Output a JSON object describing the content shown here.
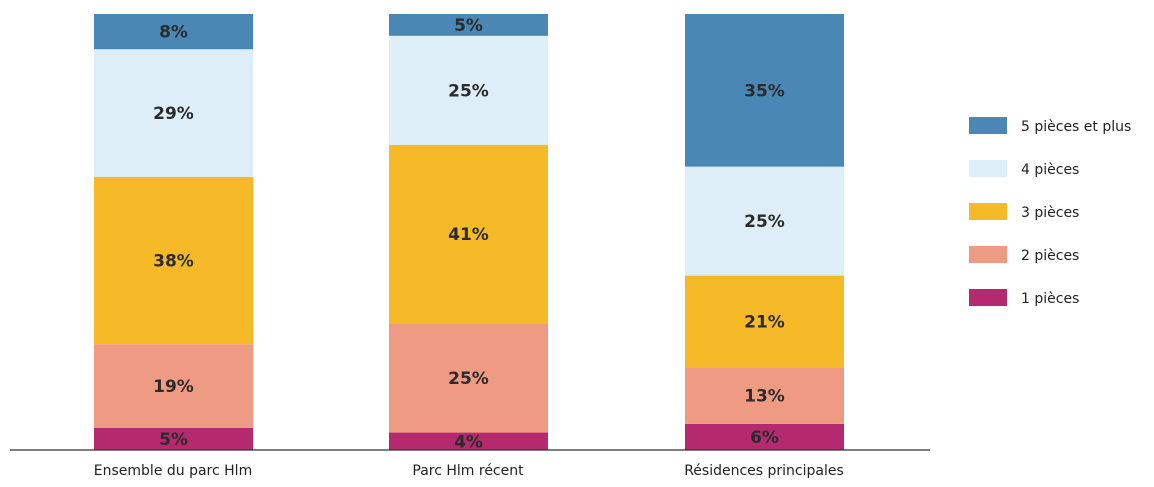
{
  "chart_data": {
    "type": "bar",
    "stacked": true,
    "categories": [
      "Ensemble du parc Hlm",
      "Parc Hlm  récent",
      "Résidences principales"
    ],
    "series": [
      {
        "name": "1 pièces",
        "values": [
          5,
          4,
          6
        ],
        "color": "#b5296e"
      },
      {
        "name": "2 pièces",
        "values": [
          19,
          25,
          13
        ],
        "color": "#ef9a82"
      },
      {
        "name": "3 pièces",
        "values": [
          38,
          41,
          21
        ],
        "color": "#f6ba28"
      },
      {
        "name": "4 pièces",
        "values": [
          29,
          25,
          25
        ],
        "color": "#ddeef8"
      },
      {
        "name": "5 pièces et plus",
        "values": [
          8,
          5,
          35
        ],
        "color": "#4a87b4"
      }
    ],
    "value_labels": [
      [
        "5%",
        "4%",
        "6%"
      ],
      [
        "19%",
        "25%",
        "13%"
      ],
      [
        "38%",
        "41%",
        "21%"
      ],
      [
        "29%",
        "25%",
        "25%"
      ],
      [
        "8%",
        "5%",
        "35%"
      ]
    ],
    "legend": [
      "5 pièces et plus",
      "4 pièces",
      "3 pièces",
      "2 pièces",
      "1 pièces"
    ],
    "legend_position": "right",
    "ylim": [
      0,
      100
    ],
    "grid": false
  }
}
